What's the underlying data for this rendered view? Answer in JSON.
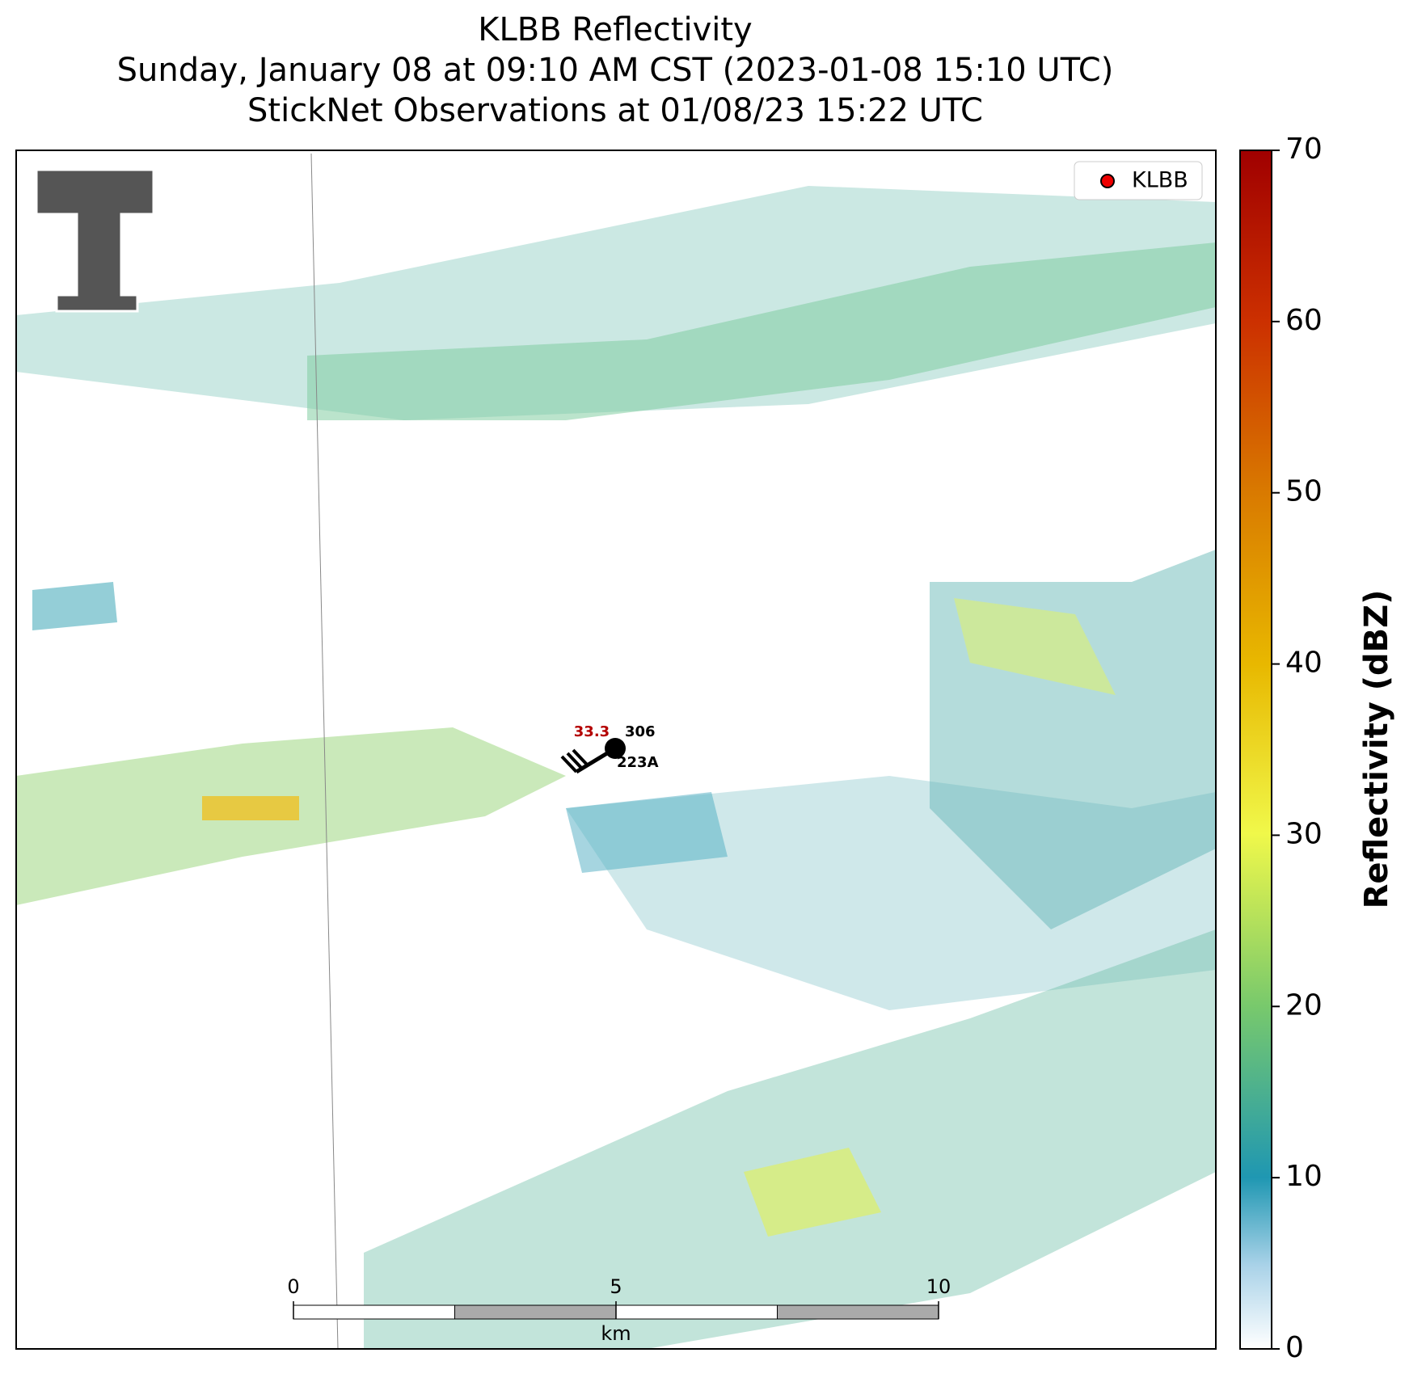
{
  "header": {
    "title": "KLBB Reflectivity",
    "subtitle": "Sunday, January 08 at 09:10 AM CST (2023-01-08 15:10 UTC)",
    "observations": "StickNet Observations at 01/08/23 15:22 UTC"
  },
  "legend": {
    "label": "KLBB"
  },
  "station": {
    "temperature": "33.3",
    "pressure": "306",
    "id": "223A"
  },
  "scalebar": {
    "ticks": [
      0,
      5,
      10
    ],
    "unit": "km"
  },
  "colorbar": {
    "label": "Reflectivity (dBZ)",
    "lim": [
      0,
      70
    ],
    "ticks": [
      0,
      10,
      20,
      30,
      40,
      50,
      60,
      70
    ]
  }
}
